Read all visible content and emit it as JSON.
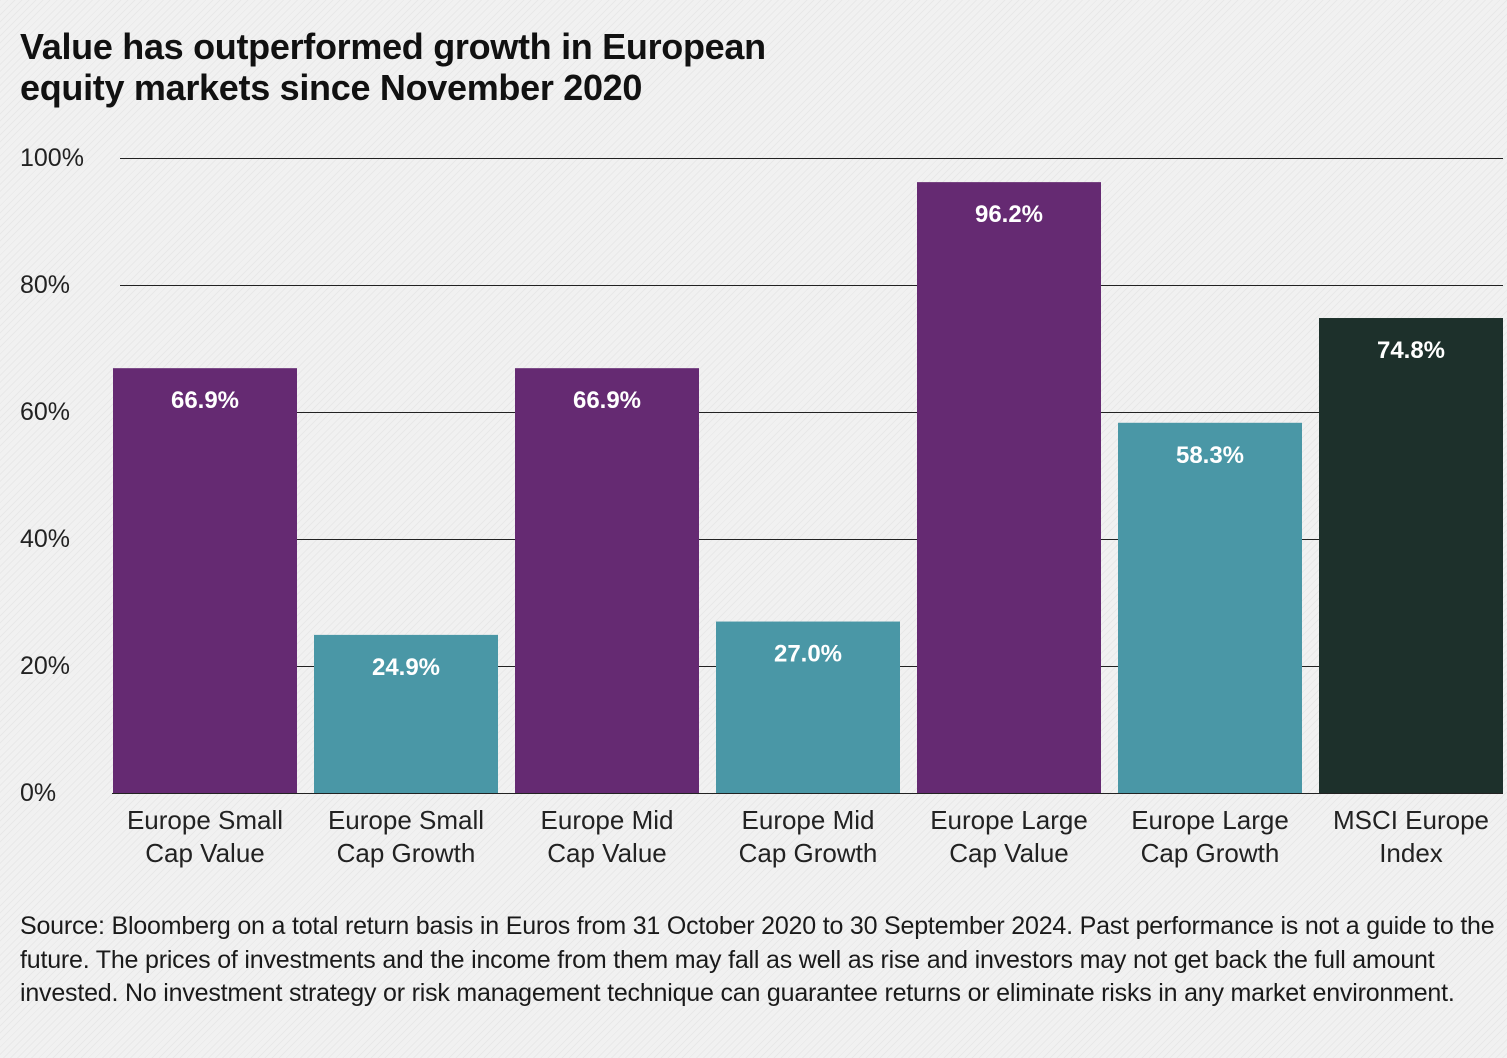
{
  "title": "Value has outperformed growth in European equity markets since November 2020",
  "footnote": "Source: Bloomberg on a total return basis in Euros from 31 October 2020 to 30 September 2024. Past performance is not a guide to the future. The prices of investments and the income from them may fall as well as rise and investors may not get back the full amount invested. No investment strategy or risk management technique can guarantee returns or eliminate risks in any market environment.",
  "colors": {
    "value": "#652a72",
    "growth": "#4a97a6",
    "index": "#1d302b",
    "grid": "#222222",
    "bar_label": "#ffffff",
    "tick_text": "#222222"
  },
  "chart_data": {
    "type": "bar",
    "title": "Value has outperformed growth in European equity markets since November 2020",
    "xlabel": "",
    "ylabel": "",
    "ylim": [
      0,
      100
    ],
    "grid": true,
    "legend": "none",
    "y_ticks": [
      0,
      20,
      40,
      60,
      80,
      100
    ],
    "y_tick_labels": [
      "0%",
      "20%",
      "40%",
      "60%",
      "80%",
      "100%"
    ],
    "categories": [
      [
        "Europe Small",
        "Cap Value"
      ],
      [
        "Europe Small",
        "Cap Growth"
      ],
      [
        "Europe Mid",
        "Cap Value"
      ],
      [
        "Europe Mid",
        "Cap Growth"
      ],
      [
        "Europe Large",
        "Cap Value"
      ],
      [
        "Europe Large",
        "Cap Growth"
      ],
      [
        "MSCI Europe",
        "Index"
      ]
    ],
    "values": [
      66.9,
      24.9,
      66.9,
      27.0,
      96.2,
      58.3,
      74.8
    ],
    "data_labels": [
      "66.9%",
      "24.9%",
      "66.9%",
      "27.0%",
      "96.2%",
      "58.3%",
      "74.8%"
    ],
    "bar_colors": [
      "#652a72",
      "#4a97a6",
      "#652a72",
      "#4a97a6",
      "#652a72",
      "#4a97a6",
      "#1d302b"
    ]
  }
}
